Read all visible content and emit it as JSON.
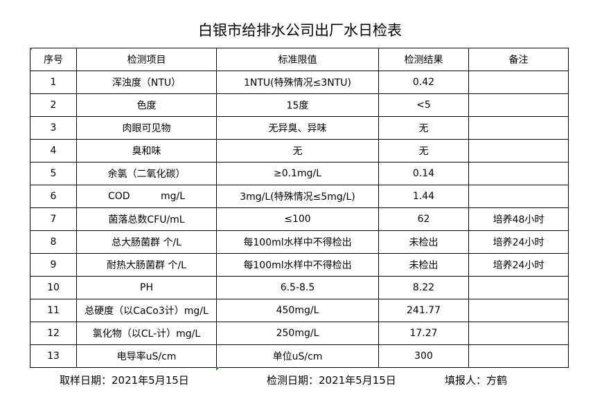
{
  "title": "白银市给排水公司出厂水日检表",
  "headers": [
    "序号",
    "检测项目",
    "标准限值",
    "检测结果",
    "备注"
  ],
  "rows": [
    [
      "1",
      "浑浊度（NTU）",
      "1NTU(特殊情况≤3NTU)",
      "0.42",
      ""
    ],
    [
      "2",
      "色度",
      "15度",
      "<5",
      ""
    ],
    [
      "3",
      "肉眼可见物",
      "无异臭、异味",
      "无",
      ""
    ],
    [
      "4",
      "臭和味",
      "无",
      "无",
      ""
    ],
    [
      "5",
      "余氯（二氧化碳）",
      "≥0.1mg/L",
      "0.14",
      ""
    ],
    [
      "6",
      "COD          mg/L",
      "3mg/L(特殊情况≤5mg/L)",
      "1.44",
      ""
    ],
    [
      "7",
      "菌落总数CFU/mL",
      "≤100",
      "62",
      "培养48小时"
    ],
    [
      "8",
      "总大肠菌群 个/L",
      "每100ml水样中不得检出",
      "未检出",
      "培养24小时"
    ],
    [
      "9",
      "耐热大肠菌群 个/L",
      "每100ml水样中不得检出",
      "未检出",
      "培养24小时"
    ],
    [
      "10",
      "PH",
      "6.5-8.5",
      "8.22",
      ""
    ],
    [
      "11",
      "总硬度（以CaCo3计）mg/L",
      "450mg/L",
      "241.77",
      ""
    ],
    [
      "12",
      "氯化物（以CL-计）mg/L",
      "250mg/L",
      "17.27",
      ""
    ],
    [
      "13",
      "电导率uS/cm",
      "单位uS/cm",
      "300",
      ""
    ]
  ],
  "footer": {
    "sampling_date": "取样日期：2021年5月15日",
    "test_date": "检测日期：2021年5月15日",
    "reporter": "填报人：方鹤"
  }
}
